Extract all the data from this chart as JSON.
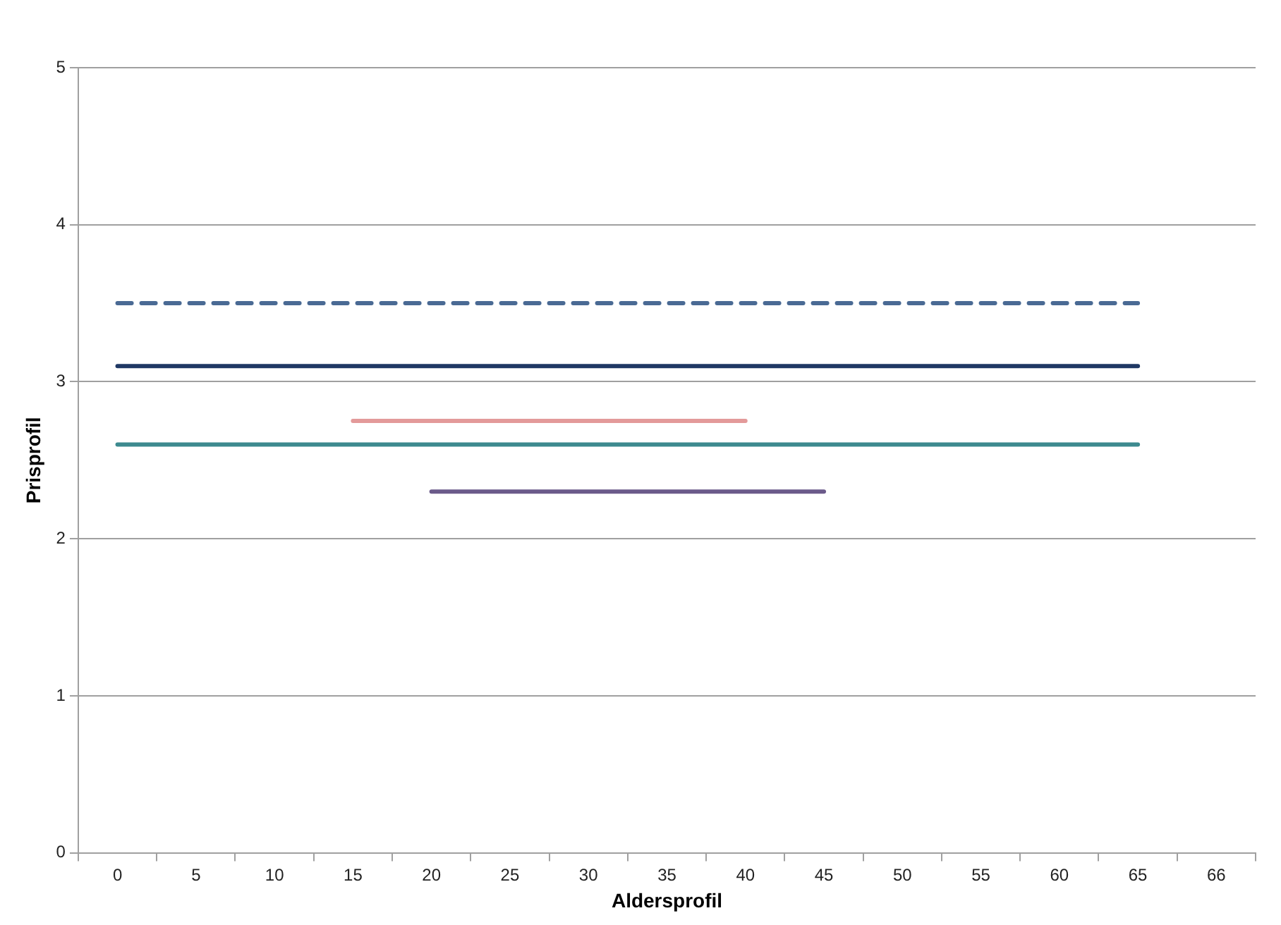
{
  "chart_data": {
    "type": "line",
    "xlabel": "Aldersprofil",
    "ylabel": "Prisprofil",
    "categories": [
      "0",
      "5",
      "10",
      "15",
      "20",
      "25",
      "30",
      "35",
      "40",
      "45",
      "50",
      "55",
      "60",
      "65",
      "66"
    ],
    "series": [
      {
        "color": "#4a6a94",
        "line_style": "dashed",
        "values": [
          3.5,
          3.5,
          3.5,
          3.5,
          3.5,
          3.5,
          3.5,
          3.5,
          3.5,
          3.5,
          3.5,
          3.5,
          3.5,
          3.5,
          null
        ]
      },
      {
        "color": "#1f3864",
        "values": [
          3.1,
          3.1,
          3.1,
          3.1,
          3.1,
          3.1,
          3.1,
          3.1,
          3.1,
          3.1,
          3.1,
          3.1,
          3.1,
          3.1,
          null
        ]
      },
      {
        "color": "#e39a9a",
        "values": [
          null,
          null,
          null,
          2.75,
          2.75,
          2.75,
          2.75,
          2.75,
          2.75,
          null,
          null,
          null,
          null,
          null,
          null
        ]
      },
      {
        "color": "#3d8a8f",
        "values": [
          2.6,
          2.6,
          2.6,
          2.6,
          2.6,
          2.6,
          2.6,
          2.6,
          2.6,
          2.6,
          2.6,
          2.6,
          2.6,
          2.6,
          null
        ]
      },
      {
        "color": "#6b5a8a",
        "values": [
          null,
          null,
          null,
          null,
          2.3,
          2.3,
          2.3,
          2.3,
          2.3,
          2.3,
          null,
          null,
          null,
          null,
          null
        ]
      }
    ],
    "ylim": [
      0,
      5
    ],
    "yticks": [
      0,
      1,
      2,
      3,
      4,
      5
    ],
    "grid": "y",
    "marker": "none",
    "line_style": "solid",
    "legend": false
  }
}
